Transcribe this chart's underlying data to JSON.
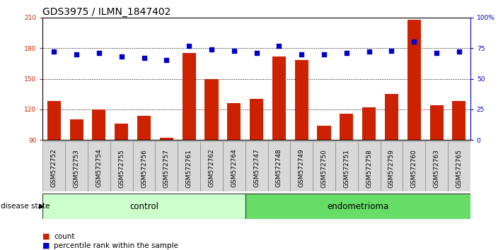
{
  "title": "GDS3975 / ILMN_1847402",
  "samples": [
    "GSM572752",
    "GSM572753",
    "GSM572754",
    "GSM572755",
    "GSM572756",
    "GSM572757",
    "GSM572761",
    "GSM572762",
    "GSM572764",
    "GSM572747",
    "GSM572748",
    "GSM572749",
    "GSM572750",
    "GSM572751",
    "GSM572758",
    "GSM572759",
    "GSM572760",
    "GSM572763",
    "GSM572765"
  ],
  "counts": [
    128,
    110,
    120,
    106,
    114,
    92,
    175,
    150,
    126,
    130,
    172,
    168,
    104,
    116,
    122,
    135,
    208,
    124,
    128
  ],
  "percentiles": [
    72,
    70,
    71,
    68,
    67,
    65,
    77,
    74,
    73,
    71,
    77,
    70,
    70,
    71,
    72,
    73,
    80,
    71,
    72
  ],
  "group_labels": [
    "control",
    "endometrioma"
  ],
  "group_sizes": [
    9,
    10
  ],
  "group_colors_light": [
    "#ccffcc",
    "#66dd66"
  ],
  "bar_color": "#cc2200",
  "dot_color": "#0000cc",
  "ylim_left": [
    90,
    210
  ],
  "ylim_right": [
    0,
    100
  ],
  "yticks_left": [
    90,
    120,
    150,
    180,
    210
  ],
  "yticks_right": [
    0,
    25,
    50,
    75,
    100
  ],
  "yticklabels_right": [
    "0",
    "25",
    "50",
    "75",
    "100%"
  ],
  "legend_count_label": "count",
  "legend_pct_label": "percentile rank within the sample",
  "disease_state_label": "disease state",
  "title_fontsize": 10,
  "tick_fontsize": 6.5,
  "label_fontsize": 8,
  "group_label_fontsize": 8.5
}
